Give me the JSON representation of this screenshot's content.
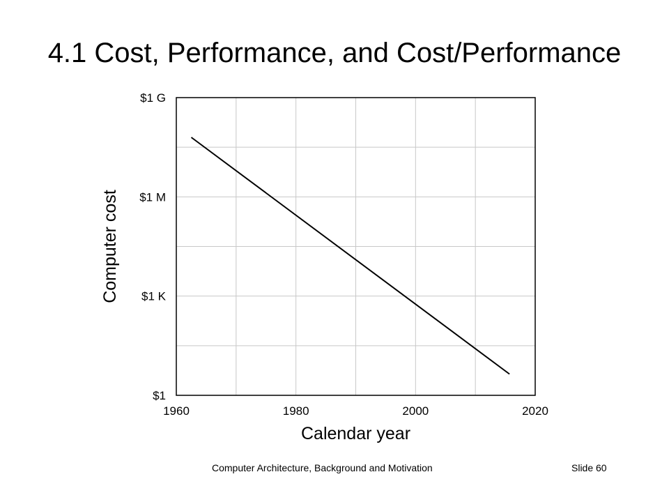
{
  "slide": {
    "title": "4.1  Cost, Performance, and Cost/Performance",
    "footer_left": "Computer Architecture, Background and Motivation",
    "footer_right": "Slide 60"
  },
  "colors": {
    "background": "#ffffff",
    "frame": "#000000",
    "grid": "#c8c8c8",
    "line": "#000000"
  },
  "chart_data": {
    "type": "line",
    "title": "",
    "xlabel": "Calendar year",
    "ylabel": "Computer cost",
    "xlim": [
      1960,
      2020
    ],
    "ylim": [
      1,
      1000000000
    ],
    "y_scale": "log",
    "grid": true,
    "x_ticks": [
      {
        "value": 1960,
        "label": "1960"
      },
      {
        "value": 1980,
        "label": "1980"
      },
      {
        "value": 2000,
        "label": "2000"
      },
      {
        "value": 2020,
        "label": "2020"
      }
    ],
    "y_ticks": [
      {
        "value": 1,
        "label": "$1"
      },
      {
        "value": 1000,
        "label": "$1 K"
      },
      {
        "value": 1000000,
        "label": "$1 M"
      },
      {
        "value": 1000000000,
        "label": "$1 G"
      }
    ],
    "series": [
      {
        "x": [
          1962.5,
          2015.7
        ],
        "y": [
          63000000,
          4.4
        ]
      }
    ]
  }
}
